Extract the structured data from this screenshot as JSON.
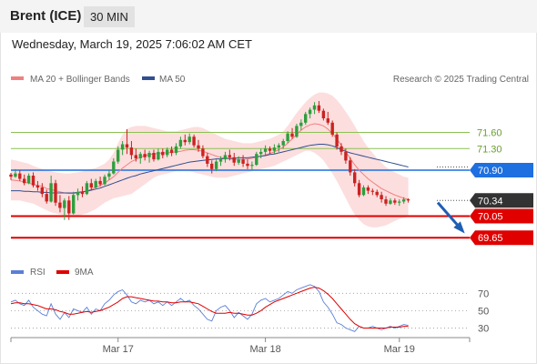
{
  "header": {
    "instrument": "Brent (ICE)",
    "timeframe": "30 MIN",
    "datetime": "Wednesday, March 19, 2025 7:06:02 AM CET"
  },
  "legend": {
    "bollinger": {
      "label": "MA 20 + Bollinger Bands",
      "color": "#f08080"
    },
    "ma50": {
      "label": "MA 50",
      "color": "#2f4f8f"
    },
    "credit": "Research © 2025 Trading Central"
  },
  "rsi_legend": {
    "rsi": {
      "label": "RSI",
      "color": "#5b7fd6"
    },
    "ma9": {
      "label": "9MA",
      "color": "#e00000"
    }
  },
  "chart_data": [
    {
      "type": "candlestick",
      "panel": "price",
      "ylim": [
        69.3,
        72.4
      ],
      "x_labels": [
        {
          "label": "Mar 17",
          "bar": 24
        },
        {
          "label": "Mar 18",
          "bar": 57
        },
        {
          "label": "Mar 19",
          "bar": 87
        }
      ],
      "bar_count": 96,
      "ohlc": [
        [
          70.82,
          70.85,
          70.72,
          70.78
        ],
        [
          70.78,
          70.92,
          70.76,
          70.84
        ],
        [
          70.84,
          70.9,
          70.7,
          70.74
        ],
        [
          70.74,
          70.82,
          70.62,
          70.66
        ],
        [
          70.66,
          70.84,
          70.64,
          70.8
        ],
        [
          70.8,
          70.86,
          70.58,
          70.62
        ],
        [
          70.62,
          70.7,
          70.52,
          70.58
        ],
        [
          70.58,
          70.66,
          70.4,
          70.46
        ],
        [
          70.46,
          70.54,
          70.28,
          70.32
        ],
        [
          70.32,
          70.8,
          70.3,
          70.66
        ],
        [
          70.66,
          70.72,
          70.24,
          70.3
        ],
        [
          70.3,
          70.44,
          70.12,
          70.2
        ],
        [
          70.2,
          70.38,
          69.98,
          70.34
        ],
        [
          70.34,
          70.42,
          69.98,
          70.1
        ],
        [
          70.1,
          70.5,
          70.08,
          70.44
        ],
        [
          70.44,
          70.56,
          70.34,
          70.5
        ],
        [
          70.5,
          70.6,
          70.4,
          70.46
        ],
        [
          70.46,
          70.7,
          70.44,
          70.66
        ],
        [
          70.66,
          70.74,
          70.52,
          70.58
        ],
        [
          70.58,
          70.74,
          70.56,
          70.7
        ],
        [
          70.7,
          70.78,
          70.6,
          70.64
        ],
        [
          70.64,
          70.82,
          70.62,
          70.78
        ],
        [
          70.78,
          70.9,
          70.72,
          70.84
        ],
        [
          70.84,
          71.12,
          70.82,
          71.06
        ],
        [
          71.06,
          71.34,
          71.02,
          71.28
        ],
        [
          71.28,
          71.44,
          71.18,
          71.38
        ],
        [
          71.38,
          71.66,
          71.2,
          71.32
        ],
        [
          71.32,
          71.44,
          71.1,
          71.18
        ],
        [
          71.18,
          71.3,
          71.06,
          71.12
        ],
        [
          71.12,
          71.24,
          71.02,
          71.2
        ],
        [
          71.2,
          71.28,
          71.08,
          71.14
        ],
        [
          71.14,
          71.26,
          71.04,
          71.22
        ],
        [
          71.22,
          71.28,
          71.06,
          71.1
        ],
        [
          71.1,
          71.3,
          71.08,
          71.24
        ],
        [
          71.24,
          71.3,
          71.12,
          71.18
        ],
        [
          71.18,
          71.32,
          71.14,
          71.28
        ],
        [
          71.28,
          71.34,
          71.16,
          71.22
        ],
        [
          71.22,
          71.4,
          71.18,
          71.34
        ],
        [
          71.34,
          71.52,
          71.3,
          71.46
        ],
        [
          71.46,
          71.56,
          71.36,
          71.42
        ],
        [
          71.42,
          71.58,
          71.38,
          71.52
        ],
        [
          71.52,
          71.56,
          71.32,
          71.36
        ],
        [
          71.36,
          71.46,
          71.24,
          71.3
        ],
        [
          71.3,
          71.36,
          71.12,
          71.16
        ],
        [
          71.16,
          71.22,
          70.96,
          71.02
        ],
        [
          71.02,
          71.08,
          70.84,
          70.92
        ],
        [
          70.92,
          71.1,
          70.88,
          71.06
        ],
        [
          71.06,
          71.16,
          70.98,
          71.1
        ],
        [
          71.1,
          71.24,
          71.04,
          71.18
        ],
        [
          71.18,
          71.28,
          71.08,
          71.14
        ],
        [
          71.14,
          71.22,
          70.98,
          71.04
        ],
        [
          71.04,
          71.16,
          71.0,
          71.1
        ],
        [
          71.1,
          71.18,
          70.96,
          71.02
        ],
        [
          71.02,
          71.1,
          70.92,
          70.98
        ],
        [
          70.98,
          71.06,
          70.9,
          71.0
        ],
        [
          71.0,
          71.24,
          70.98,
          71.2
        ],
        [
          71.2,
          71.3,
          71.12,
          71.24
        ],
        [
          71.24,
          71.36,
          71.18,
          71.3
        ],
        [
          71.3,
          71.34,
          71.2,
          71.26
        ],
        [
          71.26,
          71.38,
          71.2,
          71.32
        ],
        [
          71.32,
          71.4,
          71.24,
          71.36
        ],
        [
          71.36,
          71.48,
          71.3,
          71.44
        ],
        [
          71.44,
          71.62,
          71.4,
          71.58
        ],
        [
          71.58,
          71.68,
          71.48,
          71.52
        ],
        [
          71.52,
          71.76,
          71.5,
          71.72
        ],
        [
          71.72,
          71.84,
          71.64,
          71.78
        ],
        [
          71.78,
          71.98,
          71.74,
          71.94
        ],
        [
          71.94,
          72.06,
          71.86,
          72.02
        ],
        [
          72.02,
          72.16,
          71.94,
          72.1
        ],
        [
          72.1,
          72.18,
          71.96,
          72.0
        ],
        [
          72.0,
          72.04,
          71.82,
          71.86
        ],
        [
          71.86,
          71.98,
          71.74,
          71.78
        ],
        [
          71.78,
          71.82,
          71.52,
          71.56
        ],
        [
          71.56,
          71.6,
          71.28,
          71.34
        ],
        [
          71.34,
          71.4,
          71.18,
          71.24
        ],
        [
          71.24,
          71.3,
          71.02,
          71.08
        ],
        [
          71.08,
          71.14,
          70.8,
          70.86
        ],
        [
          70.86,
          70.92,
          70.6,
          70.66
        ],
        [
          70.66,
          70.72,
          70.4,
          70.44
        ],
        [
          70.44,
          70.62,
          70.42,
          70.58
        ],
        [
          70.58,
          70.62,
          70.46,
          70.52
        ],
        [
          70.52,
          70.56,
          70.44,
          70.5
        ],
        [
          70.5,
          70.54,
          70.4,
          70.44
        ],
        [
          70.44,
          70.5,
          70.3,
          70.36
        ],
        [
          70.36,
          70.42,
          70.24,
          70.28
        ],
        [
          70.28,
          70.38,
          70.26,
          70.34
        ],
        [
          70.34,
          70.38,
          70.26,
          70.3
        ],
        [
          70.3,
          70.36,
          70.24,
          70.32
        ],
        [
          70.32,
          70.4,
          70.28,
          70.36
        ],
        [
          70.36,
          70.38,
          70.3,
          70.34
        ]
      ],
      "bollinger": {
        "upper": [
          71.1,
          71.08,
          71.06,
          71.04,
          71.02,
          70.98,
          70.95,
          70.92,
          70.9,
          70.88,
          70.86,
          70.85,
          70.84,
          70.84,
          70.85,
          70.86,
          70.88,
          70.9,
          70.92,
          70.94,
          70.98,
          71.02,
          71.1,
          71.22,
          71.4,
          71.56,
          71.66,
          71.7,
          71.72,
          71.72,
          71.72,
          71.7,
          71.68,
          71.66,
          71.64,
          71.62,
          71.62,
          71.62,
          71.64,
          71.66,
          71.68,
          71.7,
          71.7,
          71.68,
          71.64,
          71.6,
          71.56,
          71.52,
          71.48,
          71.46,
          71.44,
          71.42,
          71.4,
          71.4,
          71.4,
          71.42,
          71.44,
          71.46,
          71.48,
          71.52,
          71.56,
          71.62,
          71.72,
          71.84,
          71.96,
          72.06,
          72.16,
          72.24,
          72.3,
          72.34,
          72.34,
          72.32,
          72.28,
          72.2,
          72.1,
          71.98,
          71.86,
          71.72,
          71.58,
          71.44,
          71.32,
          71.22,
          71.12,
          71.04,
          70.96,
          70.9,
          70.86,
          70.82,
          70.78,
          70.76
        ],
        "middle": [
          70.72,
          70.71,
          70.7,
          70.68,
          70.66,
          70.64,
          70.62,
          70.6,
          70.56,
          70.54,
          70.52,
          70.5,
          70.48,
          70.47,
          70.47,
          70.48,
          70.5,
          70.52,
          70.55,
          70.58,
          70.62,
          70.66,
          70.72,
          70.78,
          70.86,
          70.94,
          71.0,
          71.06,
          71.1,
          71.14,
          71.17,
          71.19,
          71.2,
          71.21,
          71.22,
          71.22,
          71.23,
          71.24,
          71.25,
          71.27,
          71.28,
          71.28,
          71.27,
          71.25,
          71.22,
          71.19,
          71.16,
          71.14,
          71.12,
          71.11,
          71.1,
          71.1,
          71.1,
          71.11,
          71.12,
          71.14,
          71.16,
          71.18,
          71.21,
          71.24,
          71.28,
          71.33,
          71.4,
          71.48,
          71.56,
          71.64,
          71.7,
          71.74,
          71.76,
          71.75,
          71.72,
          71.66,
          71.58,
          71.48,
          71.36,
          71.24,
          71.12,
          71.0,
          70.9,
          70.82,
          70.74,
          70.68,
          70.62,
          70.56,
          70.52,
          70.48,
          70.44,
          70.41,
          70.38,
          70.36
        ],
        "lower": [
          70.34,
          70.34,
          70.34,
          70.32,
          70.3,
          70.28,
          70.24,
          70.2,
          70.16,
          70.12,
          70.1,
          70.08,
          70.06,
          70.05,
          70.04,
          70.06,
          70.08,
          70.1,
          70.14,
          70.18,
          70.24,
          70.3,
          70.34,
          70.38,
          70.4,
          70.42,
          70.44,
          70.46,
          70.52,
          70.58,
          70.64,
          70.7,
          70.76,
          70.8,
          70.82,
          70.84,
          70.86,
          70.88,
          70.88,
          70.88,
          70.88,
          70.86,
          70.84,
          70.82,
          70.8,
          70.78,
          70.76,
          70.76,
          70.76,
          70.78,
          70.8,
          70.82,
          70.84,
          70.86,
          70.88,
          70.9,
          70.92,
          70.94,
          70.96,
          70.98,
          71.02,
          71.06,
          71.1,
          71.14,
          71.18,
          71.22,
          71.26,
          71.26,
          71.22,
          71.16,
          71.08,
          70.96,
          70.84,
          70.7,
          70.54,
          70.38,
          70.22,
          70.08,
          69.98,
          69.9,
          69.86,
          69.84,
          69.84,
          69.86,
          69.88,
          69.92,
          69.96,
          70.0,
          70.02,
          70.04
        ]
      },
      "ma50": [
        70.52,
        70.52,
        70.52,
        70.51,
        70.51,
        70.5,
        70.5,
        70.49,
        70.49,
        70.48,
        70.48,
        70.48,
        70.48,
        70.48,
        70.48,
        70.49,
        70.5,
        70.51,
        70.53,
        70.55,
        70.57,
        70.6,
        70.63,
        70.66,
        70.69,
        70.72,
        70.75,
        70.78,
        70.8,
        70.83,
        70.85,
        70.87,
        70.89,
        70.91,
        70.93,
        70.95,
        70.97,
        70.99,
        71.01,
        71.03,
        71.05,
        71.06,
        71.07,
        71.08,
        71.09,
        71.1,
        71.11,
        71.11,
        71.12,
        71.12,
        71.12,
        71.13,
        71.13,
        71.13,
        71.14,
        71.15,
        71.16,
        71.17,
        71.19,
        71.2,
        71.22,
        71.24,
        71.26,
        71.28,
        71.3,
        71.32,
        71.34,
        71.36,
        71.37,
        71.38,
        71.38,
        71.37,
        71.35,
        71.32,
        71.28,
        71.25,
        71.22,
        71.2,
        71.18,
        71.16,
        71.14,
        71.12,
        71.1,
        71.08,
        71.06,
        71.04,
        71.02,
        71.0,
        70.98,
        70.96
      ],
      "levels": [
        {
          "price": 71.6,
          "label": "71.60",
          "type": "resistance",
          "color": "#8cc152"
        },
        {
          "price": 71.3,
          "label": "71.30",
          "type": "resistance",
          "color": "#8cc152"
        },
        {
          "price": 70.9,
          "label": "70.90",
          "type": "pivot",
          "color": "#1e6fe0"
        },
        {
          "price": 70.34,
          "label": "70.34",
          "type": "last",
          "color": "#333333"
        },
        {
          "price": 70.05,
          "label": "70.05",
          "type": "support",
          "color": "#e00000"
        },
        {
          "price": 69.65,
          "label": "69.65",
          "type": "support",
          "color": "#e00000"
        }
      ],
      "projection": {
        "direction": "down",
        "from": 70.3,
        "to": 69.68,
        "color": "#1e5fb4"
      }
    },
    {
      "type": "line",
      "panel": "RSI",
      "ylim": [
        20,
        85
      ],
      "y_ticks": [
        70,
        50,
        30
      ],
      "series": [
        {
          "name": "RSI",
          "values": [
            60,
            62,
            58,
            56,
            62,
            54,
            50,
            46,
            44,
            58,
            46,
            40,
            48,
            42,
            52,
            50,
            48,
            54,
            46,
            52,
            50,
            58,
            62,
            68,
            72,
            74,
            68,
            60,
            58,
            62,
            60,
            62,
            58,
            60,
            56,
            60,
            56,
            60,
            64,
            60,
            62,
            56,
            52,
            46,
            40,
            38,
            50,
            54,
            56,
            50,
            42,
            48,
            44,
            40,
            46,
            58,
            62,
            64,
            60,
            62,
            64,
            68,
            72,
            70,
            74,
            76,
            78,
            80,
            78,
            72,
            60,
            54,
            46,
            36,
            34,
            30,
            28,
            26,
            32,
            30,
            30,
            32,
            30,
            28,
            30,
            32,
            30,
            32,
            34,
            33
          ]
        },
        {
          "name": "9MA",
          "values": [
            58,
            59,
            59,
            58,
            58,
            57,
            56,
            54,
            52,
            52,
            51,
            49,
            48,
            46,
            46,
            47,
            48,
            49,
            48,
            49,
            50,
            52,
            54,
            57,
            60,
            64,
            66,
            66,
            65,
            64,
            63,
            62,
            61,
            61,
            60,
            60,
            59,
            59,
            60,
            60,
            60,
            59,
            58,
            55,
            52,
            49,
            47,
            47,
            47,
            48,
            47,
            47,
            46,
            45,
            45,
            47,
            50,
            54,
            57,
            60,
            62,
            64,
            66,
            68,
            70,
            72,
            74,
            76,
            77,
            76,
            73,
            69,
            64,
            58,
            52,
            46,
            40,
            35,
            32,
            30,
            30,
            30,
            30,
            30,
            30,
            31,
            31,
            31,
            32,
            32
          ]
        }
      ]
    }
  ]
}
